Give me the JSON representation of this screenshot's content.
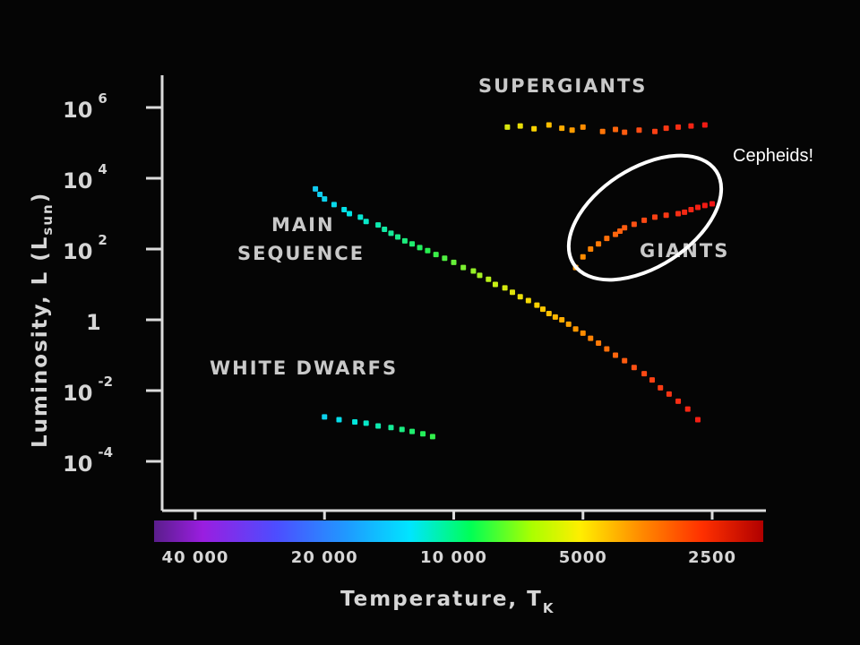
{
  "chart_data": {
    "type": "scatter",
    "title": "",
    "xlabel": "Temperature, T",
    "xlabel_subscript": "K",
    "ylabel": "Luminosity, L (L",
    "ylabel_subscript": "sun",
    "ylabel_close": ")",
    "x_axis_reversed": true,
    "x_scale": "log",
    "y_scale": "log",
    "x_ticks": [
      {
        "value": 40000,
        "label": "40 000"
      },
      {
        "value": 20000,
        "label": "20 000"
      },
      {
        "value": 10000,
        "label": "10 000"
      },
      {
        "value": 5000,
        "label": "5000"
      },
      {
        "value": 2500,
        "label": "2500"
      }
    ],
    "y_ticks": [
      {
        "value": 1000000,
        "base": "10",
        "exp": "6"
      },
      {
        "value": 10000,
        "base": "10",
        "exp": "4"
      },
      {
        "value": 100,
        "base": "10",
        "exp": "2"
      },
      {
        "value": 1,
        "base": "1",
        "exp": ""
      },
      {
        "value": 0.01,
        "base": "10",
        "exp": "-2"
      },
      {
        "value": 0.0001,
        "base": "10",
        "exp": "-4"
      }
    ],
    "color_scale": "temperature spectrum: violet (hot) to red (cool)",
    "regions": [
      {
        "label": "Supergiants",
        "display": "SUPERGIANTS"
      },
      {
        "label": "Main Sequence",
        "display_lines": [
          "MAIN",
          "SEQUENCE"
        ]
      },
      {
        "label": "Giants",
        "display": "GIANTS"
      },
      {
        "label": "White Dwarfs",
        "display": "WHITE DWARFS"
      }
    ],
    "annotation": {
      "text": "Cepheids!",
      "shape": "ellipse",
      "encloses": "upper giants"
    },
    "series": [
      {
        "name": "Main Sequence",
        "points": [
          [
            21000,
            5000
          ],
          [
            20500,
            3500
          ],
          [
            20000,
            2600
          ],
          [
            19000,
            1800
          ],
          [
            18000,
            1300
          ],
          [
            17500,
            1000
          ],
          [
            16500,
            800
          ],
          [
            16000,
            600
          ],
          [
            15000,
            480
          ],
          [
            14500,
            360
          ],
          [
            14000,
            280
          ],
          [
            13500,
            220
          ],
          [
            13000,
            170
          ],
          [
            12500,
            140
          ],
          [
            12000,
            110
          ],
          [
            11500,
            90
          ],
          [
            11000,
            70
          ],
          [
            10500,
            55
          ],
          [
            10000,
            42
          ],
          [
            9500,
            30
          ],
          [
            9000,
            24
          ],
          [
            8700,
            18
          ],
          [
            8300,
            14
          ],
          [
            8000,
            10
          ],
          [
            7600,
            8
          ],
          [
            7300,
            6
          ],
          [
            7000,
            4.5
          ],
          [
            6700,
            3.5
          ],
          [
            6400,
            2.6
          ],
          [
            6200,
            2
          ],
          [
            6000,
            1.5
          ],
          [
            5800,
            1.2
          ],
          [
            5600,
            1.0
          ],
          [
            5400,
            0.75
          ],
          [
            5200,
            0.55
          ],
          [
            5000,
            0.42
          ],
          [
            4800,
            0.3
          ],
          [
            4600,
            0.22
          ],
          [
            4400,
            0.15
          ],
          [
            4200,
            0.1
          ],
          [
            4000,
            0.07
          ],
          [
            3800,
            0.045
          ],
          [
            3600,
            0.03
          ],
          [
            3450,
            0.02
          ],
          [
            3300,
            0.012
          ],
          [
            3150,
            0.008
          ],
          [
            3000,
            0.005
          ],
          [
            2850,
            0.003
          ],
          [
            2700,
            0.0015
          ]
        ]
      },
      {
        "name": "Giants",
        "points": [
          [
            5200,
            30
          ],
          [
            5000,
            60
          ],
          [
            4800,
            100
          ],
          [
            4600,
            140
          ],
          [
            4400,
            200
          ],
          [
            4200,
            260
          ],
          [
            4100,
            320
          ],
          [
            4000,
            400
          ],
          [
            3800,
            500
          ],
          [
            3600,
            650
          ],
          [
            3400,
            800
          ],
          [
            3200,
            900
          ],
          [
            3000,
            1000
          ],
          [
            2900,
            1100
          ],
          [
            2800,
            1300
          ],
          [
            2700,
            1500
          ],
          [
            2600,
            1700
          ],
          [
            2500,
            1900
          ]
        ]
      },
      {
        "name": "Supergiants",
        "points": [
          [
            7500,
            280000
          ],
          [
            7000,
            300000
          ],
          [
            6500,
            250000
          ],
          [
            6000,
            320000
          ],
          [
            5600,
            260000
          ],
          [
            5300,
            230000
          ],
          [
            5000,
            280000
          ],
          [
            4500,
            210000
          ],
          [
            4200,
            240000
          ],
          [
            4000,
            200000
          ],
          [
            3700,
            230000
          ],
          [
            3400,
            210000
          ],
          [
            3200,
            260000
          ],
          [
            3000,
            280000
          ],
          [
            2800,
            300000
          ],
          [
            2600,
            320000
          ]
        ]
      },
      {
        "name": "White Dwarfs",
        "points": [
          [
            20000,
            0.0018
          ],
          [
            18500,
            0.0015
          ],
          [
            17000,
            0.0013
          ],
          [
            16000,
            0.0012
          ],
          [
            15000,
            0.001
          ],
          [
            14000,
            0.0009
          ],
          [
            13200,
            0.0008
          ],
          [
            12500,
            0.0007
          ],
          [
            11800,
            0.0006
          ],
          [
            11200,
            0.0005
          ]
        ]
      }
    ]
  }
}
